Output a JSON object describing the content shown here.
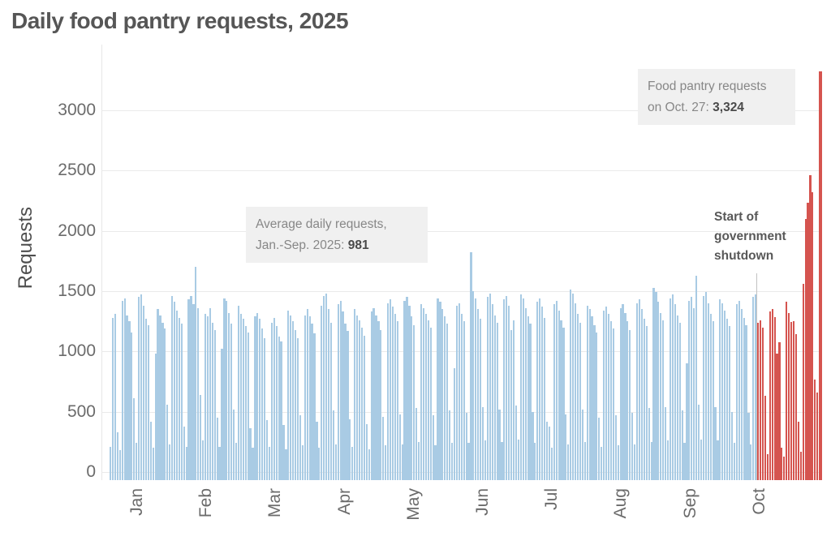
{
  "title": "Daily food pantry requests, 2025",
  "y_axis": {
    "label": "Requests",
    "ticks": [
      "0",
      "500",
      "1000",
      "1500",
      "2000",
      "2500",
      "3000"
    ]
  },
  "x_axis": {
    "months": [
      "Jan",
      "Feb",
      "Mar",
      "Apr",
      "May",
      "Jun",
      "Jul",
      "Aug",
      "Sep",
      "Oct"
    ]
  },
  "annotations": {
    "average": {
      "line1": "Average daily requests,",
      "line2_prefix": "Jan.-Sep. 2025: ",
      "value": "981"
    },
    "oct27": {
      "line1": "Food pantry requests",
      "line2_prefix": "on Oct. 27: ",
      "value": "3,324"
    },
    "shutdown": {
      "line1": "Start of",
      "line2": "government",
      "line3": "shutdown"
    }
  },
  "colors": {
    "bar_normal": "#a9cbe4",
    "bar_shutdown": "#d5544f",
    "marker_line": "#c2c2c2",
    "grid": "#eaeaea",
    "title_text": "#565656",
    "axis_text": "#6b6b6b",
    "annotation_bg": "#f0f0f0",
    "annotation_text": "#878787",
    "annotation_value": "#4a4a4a"
  },
  "chart_data": {
    "type": "bar",
    "title": "Daily food pantry requests, 2025",
    "ylabel": "Requests",
    "ylim": [
      0,
      3400
    ],
    "yticks": [
      0,
      500,
      1000,
      1500,
      2000,
      2500,
      3000
    ],
    "grid": "horizontal",
    "x_unit": "day",
    "start_date": "2025-01-01",
    "end_date": "2025-10-27",
    "shutdown_start_index": 273,
    "average_jan_sep": 981,
    "oct27_value": 3324,
    "values": [
      210,
      1280,
      1310,
      330,
      185,
      1420,
      1440,
      1300,
      1250,
      1160,
      610,
      240,
      1450,
      1470,
      1380,
      1270,
      1220,
      420,
      200,
      980,
      1350,
      1300,
      1240,
      1190,
      560,
      230,
      1460,
      1410,
      1340,
      1280,
      1230,
      380,
      210,
      1430,
      1460,
      1390,
      1700,
      1360,
      640,
      260,
      1310,
      1290,
      1360,
      1240,
      1180,
      450,
      210,
      1020,
      1440,
      1420,
      1320,
      1230,
      520,
      240,
      1380,
      1310,
      1270,
      1210,
      1160,
      360,
      200,
      1290,
      1320,
      1270,
      1190,
      1110,
      430,
      210,
      1240,
      1280,
      1210,
      1120,
      1080,
      390,
      190,
      1340,
      1300,
      1250,
      1180,
      1110,
      470,
      220,
      1300,
      1350,
      1290,
      1230,
      1150,
      420,
      200,
      1380,
      1460,
      1480,
      1350,
      1240,
      510,
      230,
      1390,
      1420,
      1330,
      1230,
      1170,
      440,
      210,
      1350,
      1300,
      1260,
      1200,
      1130,
      400,
      190,
      1330,
      1360,
      1300,
      1250,
      1180,
      460,
      220,
      1400,
      1430,
      1370,
      1310,
      1250,
      480,
      230,
      1420,
      1450,
      1380,
      1290,
      1220,
      530,
      250,
      1390,
      1360,
      1310,
      1260,
      1200,
      470,
      220,
      1440,
      1410,
      1350,
      1290,
      1230,
      510,
      240,
      860,
      1380,
      1400,
      1310,
      1250,
      490,
      240,
      1820,
      1500,
      1440,
      1350,
      1270,
      540,
      260,
      1450,
      1480,
      1390,
      1300,
      1240,
      520,
      250,
      1430,
      1460,
      1380,
      1180,
      1260,
      550,
      270,
      1470,
      1440,
      1360,
      1290,
      1230,
      500,
      240,
      1410,
      1440,
      1370,
      1280,
      420,
      380,
      200,
      1390,
      1420,
      1340,
      1260,
      1200,
      480,
      230,
      1510,
      1480,
      1400,
      1310,
      1240,
      520,
      250,
      1380,
      1350,
      1290,
      1220,
      1160,
      450,
      210,
      1340,
      1370,
      1310,
      1250,
      1190,
      470,
      220,
      1360,
      1390,
      1320,
      1250,
      1180,
      490,
      230,
      1400,
      1430,
      1350,
      1270,
      1210,
      530,
      250,
      1530,
      1490,
      1410,
      1320,
      1260,
      540,
      260,
      1440,
      1470,
      1390,
      1300,
      1240,
      510,
      240,
      900,
      1420,
      1450,
      1360,
      1630,
      560,
      270,
      1460,
      1490,
      1400,
      1310,
      1250,
      540,
      260,
      1430,
      1400,
      1340,
      1270,
      1210,
      500,
      240,
      1390,
      1420,
      1350,
      1280,
      1220,
      490,
      230,
      1450,
      1470,
      1240,
      1255,
      1195,
      630,
      145,
      1330,
      1350,
      1285,
      985,
      1075,
      200,
      130,
      1410,
      1320,
      1245,
      1250,
      1140,
      420,
      170,
      1560,
      2100,
      2230,
      2460,
      2320,
      770,
      660,
      3324
    ],
    "shutdown_marker": {
      "x_index": 273,
      "top_value": 1650
    }
  }
}
